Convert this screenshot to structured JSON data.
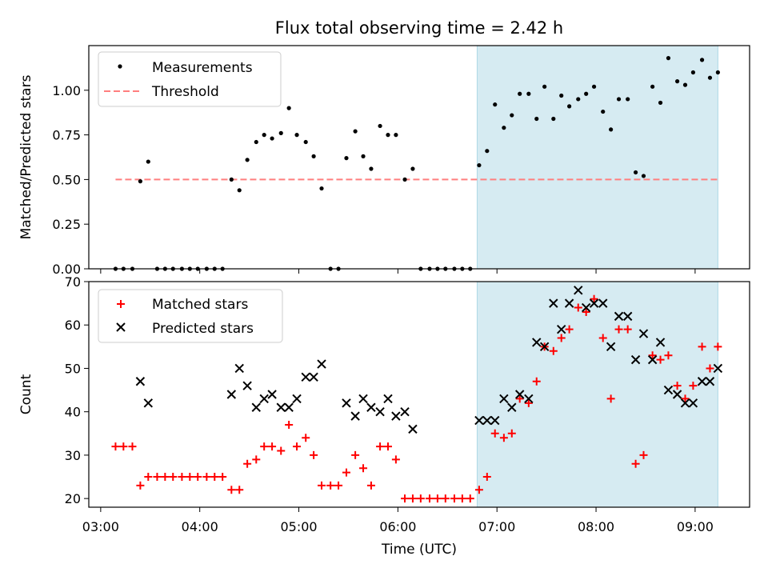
{
  "title": "Flux total observing time = 2.42 h",
  "colors": {
    "measurement": "#000000",
    "threshold": "#ff7f7f",
    "matched": "#ff0000",
    "predicted": "#000000",
    "shade": "#add8e6"
  },
  "chart_data": [
    {
      "type": "scatter",
      "panel": "top",
      "ylabel": "Matched/Predicted stars",
      "xlim": [
        2.88,
        9.55
      ],
      "ylim": [
        0,
        1.25
      ],
      "yticks": [
        0,
        0.25,
        0.5,
        0.75,
        1.0
      ],
      "ytick_labels": [
        "0.00",
        "0.25",
        "0.50",
        "0.75",
        "1.00"
      ],
      "legend": [
        "Measurements",
        "Threshold"
      ],
      "legend_position": "top-left",
      "shaded_span": [
        6.8,
        9.23
      ],
      "threshold": {
        "name": "Threshold",
        "value": 0.5,
        "x": [
          3.15,
          9.23
        ]
      },
      "series": [
        {
          "name": "Measurements",
          "x": [
            3.15,
            3.23,
            3.32,
            3.4,
            3.48,
            3.57,
            3.65,
            3.73,
            3.82,
            3.9,
            3.98,
            4.07,
            4.15,
            4.23,
            4.32,
            4.4,
            4.48,
            4.57,
            4.65,
            4.73,
            4.82,
            4.9,
            4.98,
            5.07,
            5.15,
            5.23,
            5.32,
            5.4,
            5.48,
            5.57,
            5.65,
            5.73,
            5.82,
            5.9,
            5.98,
            6.07,
            6.15,
            6.23,
            6.32,
            6.4,
            6.48,
            6.57,
            6.65,
            6.73,
            6.82,
            6.9,
            6.98,
            7.07,
            7.15,
            7.23,
            7.32,
            7.4,
            7.48,
            7.57,
            7.65,
            7.73,
            7.82,
            7.9,
            7.98,
            8.07,
            8.15,
            8.23,
            8.32,
            8.4,
            8.48,
            8.57,
            8.65,
            8.73,
            8.82,
            8.9,
            8.98,
            9.07,
            9.15,
            9.23
          ],
          "y": [
            0,
            0,
            0,
            0.49,
            0.6,
            0,
            0,
            0,
            0,
            0,
            0,
            0,
            0,
            0,
            0.5,
            0.44,
            0.61,
            0.71,
            0.75,
            0.73,
            0.76,
            0.9,
            0.75,
            0.71,
            0.63,
            0.45,
            0,
            0,
            0.62,
            0.77,
            0.63,
            0.56,
            0.8,
            0.75,
            0.75,
            0.5,
            0.56,
            0,
            0,
            0,
            0,
            0,
            0,
            0,
            0.58,
            0.66,
            0.92,
            0.79,
            0.86,
            0.98,
            0.98,
            0.84,
            1.02,
            0.84,
            0.97,
            0.91,
            0.95,
            0.98,
            1.02,
            0.88,
            0.78,
            0.95,
            0.95,
            0.54,
            0.52,
            1.02,
            0.93,
            1.18,
            1.05,
            1.03,
            1.1,
            1.17,
            1.07,
            1.1
          ]
        }
      ]
    },
    {
      "type": "scatter",
      "panel": "bottom",
      "xlabel": "Time (UTC)",
      "ylabel": "Count",
      "xlim": [
        2.88,
        9.55
      ],
      "ylim": [
        18,
        70
      ],
      "yticks": [
        20,
        30,
        40,
        50,
        60,
        70
      ],
      "xticks": [
        3,
        4,
        5,
        6,
        7,
        8,
        9
      ],
      "xtick_labels": [
        "03:00",
        "04:00",
        "05:00",
        "06:00",
        "07:00",
        "08:00",
        "09:00"
      ],
      "legend": [
        "Matched stars",
        "Predicted stars"
      ],
      "legend_position": "top-left",
      "shaded_span": [
        6.8,
        9.23
      ],
      "series": [
        {
          "name": "Matched stars",
          "marker": "plus",
          "x": [
            3.15,
            3.23,
            3.32,
            3.4,
            3.48,
            3.57,
            3.65,
            3.73,
            3.82,
            3.9,
            3.98,
            4.07,
            4.15,
            4.23,
            4.32,
            4.4,
            4.48,
            4.57,
            4.65,
            4.73,
            4.82,
            4.9,
            4.98,
            5.07,
            5.15,
            5.23,
            5.32,
            5.4,
            5.48,
            5.57,
            5.65,
            5.73,
            5.82,
            5.9,
            5.98,
            6.07,
            6.15,
            6.23,
            6.32,
            6.4,
            6.48,
            6.57,
            6.65,
            6.73,
            6.82,
            6.9,
            6.98,
            7.07,
            7.15,
            7.23,
            7.32,
            7.4,
            7.48,
            7.57,
            7.65,
            7.73,
            7.82,
            7.9,
            7.98,
            8.07,
            8.15,
            8.23,
            8.32,
            8.4,
            8.48,
            8.57,
            8.65,
            8.73,
            8.82,
            8.9,
            8.98,
            9.07,
            9.15,
            9.23
          ],
          "y": [
            32,
            32,
            32,
            23,
            25,
            25,
            25,
            25,
            25,
            25,
            25,
            25,
            25,
            25,
            22,
            22,
            28,
            29,
            32,
            32,
            31,
            37,
            32,
            34,
            30,
            23,
            23,
            23,
            26,
            30,
            27,
            23,
            32,
            32,
            29,
            20,
            20,
            20,
            20,
            20,
            20,
            20,
            20,
            20,
            22,
            25,
            35,
            34,
            35,
            43,
            42,
            47,
            55,
            54,
            57,
            59,
            64,
            63,
            66,
            57,
            43,
            59,
            59,
            28,
            30,
            53,
            52,
            53,
            46,
            43,
            46,
            55,
            50,
            55
          ]
        },
        {
          "name": "Predicted stars",
          "marker": "x",
          "x": [
            3.4,
            3.48,
            4.32,
            4.4,
            4.48,
            4.57,
            4.65,
            4.73,
            4.82,
            4.9,
            4.98,
            5.07,
            5.15,
            5.23,
            5.48,
            5.57,
            5.65,
            5.73,
            5.82,
            5.9,
            5.98,
            6.07,
            6.15,
            6.82,
            6.9,
            6.98,
            7.07,
            7.15,
            7.23,
            7.32,
            7.4,
            7.48,
            7.57,
            7.65,
            7.73,
            7.82,
            7.9,
            7.98,
            8.07,
            8.15,
            8.23,
            8.32,
            8.4,
            8.48,
            8.57,
            8.65,
            8.73,
            8.82,
            8.9,
            8.98,
            9.07,
            9.15,
            9.23
          ],
          "y": [
            47,
            42,
            44,
            50,
            46,
            41,
            43,
            44,
            41,
            41,
            43,
            48,
            48,
            51,
            42,
            39,
            43,
            41,
            40,
            43,
            39,
            40,
            36,
            38,
            38,
            38,
            43,
            41,
            44,
            43,
            56,
            55,
            65,
            59,
            65,
            68,
            64,
            65,
            65,
            55,
            62,
            62,
            52,
            58,
            52,
            56,
            45,
            44,
            42,
            42,
            47,
            47,
            50
          ]
        }
      ]
    }
  ]
}
